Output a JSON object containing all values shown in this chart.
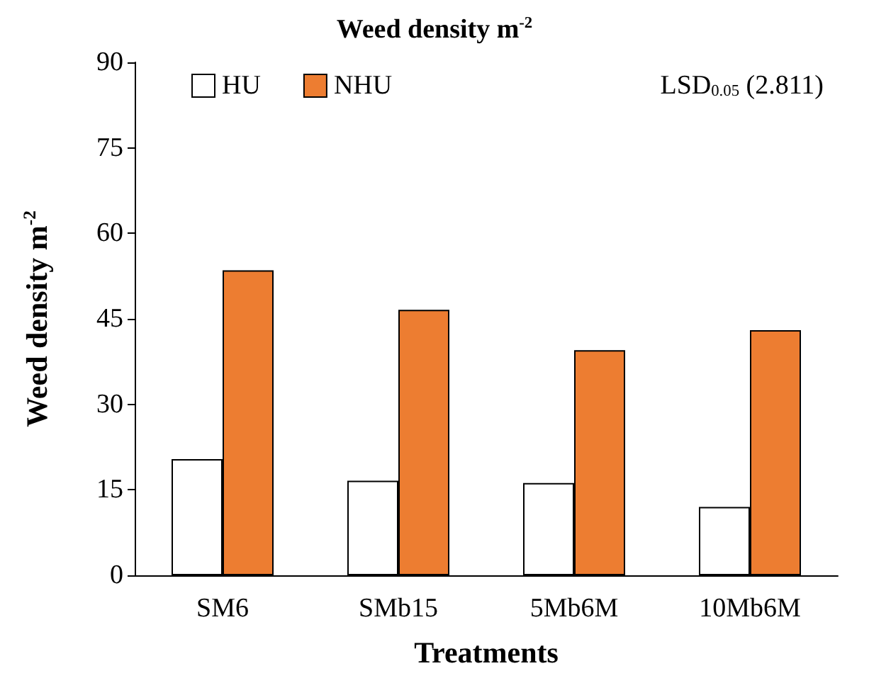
{
  "chart_data": {
    "type": "bar",
    "title": "Weed density m$^{-2}$",
    "xlabel": "Treatments",
    "ylabel": "Weed density m$^{-2}$",
    "categories": [
      "SM6",
      "SMb15",
      "5Mb6M",
      "10Mb6M"
    ],
    "series": [
      {
        "name": "HU",
        "color": "#ffffff",
        "values": [
          20.4,
          16.6,
          16.2,
          12.0
        ]
      },
      {
        "name": "NHU",
        "color": "#ed7d31",
        "values": [
          53.5,
          46.6,
          39.5,
          43.0
        ]
      }
    ],
    "ylim": [
      0,
      90
    ],
    "yticks": [
      0,
      15,
      30,
      45,
      60,
      75,
      90
    ],
    "grid": false,
    "legend": "top left",
    "annotations": [
      "LSD$_{0.05}$ (2.811)"
    ]
  }
}
